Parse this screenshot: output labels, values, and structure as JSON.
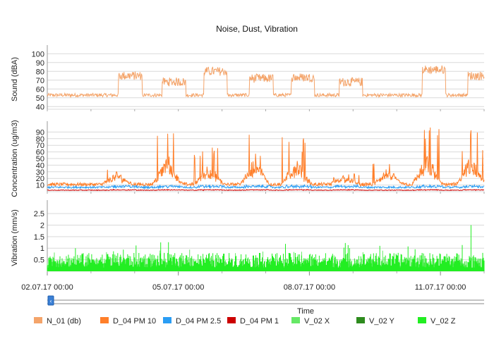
{
  "chart_data": {
    "type": "line",
    "title": "Noise, Dust, Vibration",
    "xlabel": "Time",
    "x_ticks": [
      "02.07.17 00:00",
      "05.07.17 00:00",
      "08.07.17 00:00",
      "11.07.17 00:00"
    ],
    "x_range_days": [
      2.0,
      12.0
    ],
    "panels": [
      {
        "ylabel": "Sound (dBA)",
        "ylim": [
          37,
          105
        ],
        "yticks": [
          40,
          50,
          60,
          70,
          80,
          90,
          100
        ],
        "series": [
          {
            "name": "N_01 (db)",
            "color": "#f4a46a",
            "description_values": {
              "baseline": 53,
              "peaks": [
                {
                  "day": 3.75,
                  "value": 80
                },
                {
                  "day": 4.75,
                  "value": 73
                },
                {
                  "day": 5.7,
                  "value": 85
                },
                {
                  "day": 6.75,
                  "value": 77
                },
                {
                  "day": 7.7,
                  "value": 78
                },
                {
                  "day": 8.8,
                  "value": 73
                },
                {
                  "day": 10.7,
                  "value": 87
                },
                {
                  "day": 11.75,
                  "value": 80
                }
              ]
            }
          }
        ]
      },
      {
        "ylabel": "Concentration (ug/m3)",
        "ylim": [
          0,
          100
        ],
        "yticks": [
          10,
          20,
          30,
          40,
          50,
          60,
          70,
          80,
          90
        ],
        "series": [
          {
            "name": "D_04 PM 10",
            "color": "#ff7f2a",
            "description_values": {
              "baseline": 10,
              "peaks": [
                {
                  "day": 3.6,
                  "value": 40
                },
                {
                  "day": 4.75,
                  "value": 96
                },
                {
                  "day": 5.7,
                  "value": 68
                },
                {
                  "day": 6.75,
                  "value": 90
                },
                {
                  "day": 7.7,
                  "value": 88
                },
                {
                  "day": 8.8,
                  "value": 30
                },
                {
                  "day": 9.8,
                  "value": 52
                },
                {
                  "day": 10.7,
                  "value": 98
                },
                {
                  "day": 11.7,
                  "value": 95
                }
              ]
            }
          },
          {
            "name": "D_04 PM 2.5",
            "color": "#2a9df4",
            "description_values": {
              "baseline": 6
            }
          },
          {
            "name": "D_04 PM 1",
            "color": "#cc0000",
            "description_values": {
              "baseline": 2
            }
          }
        ]
      },
      {
        "ylabel": "Vibration (mm/s)",
        "ylim": [
          0,
          2.9
        ],
        "yticks": [
          0.5,
          1,
          1.5,
          2,
          2.5
        ],
        "series": [
          {
            "name": "V_02 X",
            "color": "#66e866",
            "description_values": {
              "typical_max": 0.6
            }
          },
          {
            "name": "V_02 Y",
            "color": "#2e8b1e",
            "description_values": {
              "typical_max": 0.15
            }
          },
          {
            "name": "V_02 Z",
            "color": "#22ee22",
            "description_values": {
              "typical_max": 0.8,
              "max": 2.0
            }
          }
        ]
      }
    ],
    "legend": {
      "placement": "bottom",
      "entries": [
        {
          "name": "N_01 (db)",
          "color": "#f4a46a"
        },
        {
          "name": "D_04 PM 10",
          "color": "#ff7f2a"
        },
        {
          "name": "D_04 PM 2.5",
          "color": "#2a9df4"
        },
        {
          "name": "D_04 PM 1",
          "color": "#cc0000"
        },
        {
          "name": "V_02 X",
          "color": "#66e866"
        },
        {
          "name": "V_02 Y",
          "color": "#2e8b1e"
        },
        {
          "name": "V_02 Z",
          "color": "#22ee22"
        }
      ]
    },
    "grid": true
  }
}
